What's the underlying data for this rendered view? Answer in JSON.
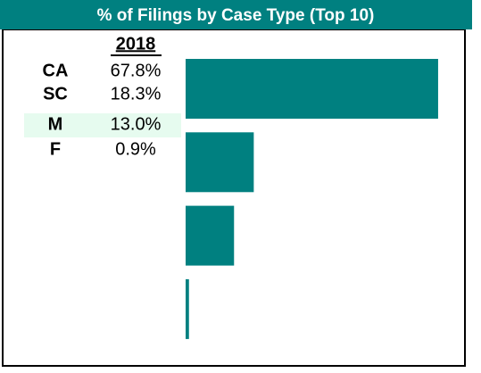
{
  "chart_data": {
    "type": "bar",
    "orientation": "horizontal",
    "title": "% of Filings by Case Type (Top 10)",
    "column_header": "2018",
    "categories": [
      "CA",
      "SC",
      "M",
      "F"
    ],
    "values": [
      67.8,
      18.3,
      13.0,
      0.9
    ],
    "value_labels": [
      "67.8%",
      "18.3%",
      "13.0%",
      "0.9%"
    ],
    "highlighted": "M",
    "color": "#008080",
    "xlim": [
      0,
      75
    ]
  }
}
